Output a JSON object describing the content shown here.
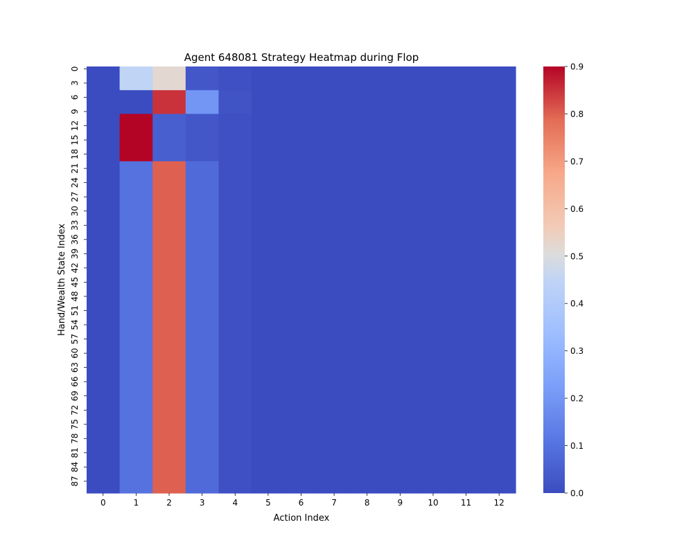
{
  "chart_data": {
    "type": "heatmap",
    "title": "Agent 648081 Strategy Heatmap during Flop",
    "xlabel": "Action Index",
    "ylabel": "Hand/Wealth State Index",
    "x_ticks": [
      "0",
      "1",
      "2",
      "3",
      "4",
      "5",
      "6",
      "7",
      "8",
      "9",
      "10",
      "11",
      "12"
    ],
    "y_ticks": [
      "0",
      "3",
      "6",
      "9",
      "12",
      "15",
      "18",
      "21",
      "24",
      "27",
      "30",
      "33",
      "36",
      "39",
      "42",
      "45",
      "48",
      "51",
      "54",
      "57",
      "60",
      "63",
      "66",
      "69",
      "72",
      "75",
      "78",
      "81",
      "84",
      "87"
    ],
    "colorbar": {
      "min": 0.0,
      "max": 0.9,
      "ticks": [
        "0.0",
        "0.1",
        "0.2",
        "0.3",
        "0.4",
        "0.5",
        "0.6",
        "0.7",
        "0.8",
        "0.9"
      ],
      "colormap": "coolwarm"
    },
    "n_rows": 90,
    "n_cols": 13,
    "row_blocks": [
      {
        "rows": "0-4",
        "values": [
          0.0,
          0.45,
          0.52,
          0.03,
          0.01,
          0,
          0,
          0,
          0,
          0,
          0,
          0,
          0
        ]
      },
      {
        "rows": "5-9",
        "values": [
          0.0,
          0.0,
          0.85,
          0.2,
          0.02,
          0,
          0,
          0,
          0,
          0,
          0,
          0,
          0
        ]
      },
      {
        "rows": "10-19",
        "values": [
          0.0,
          0.9,
          0.05,
          0.03,
          0.01,
          0,
          0,
          0,
          0,
          0,
          0,
          0,
          0
        ]
      },
      {
        "rows": "20-89",
        "values": [
          0.0,
          0.1,
          0.8,
          0.08,
          0.01,
          0,
          0,
          0,
          0,
          0,
          0,
          0,
          0
        ]
      }
    ]
  }
}
